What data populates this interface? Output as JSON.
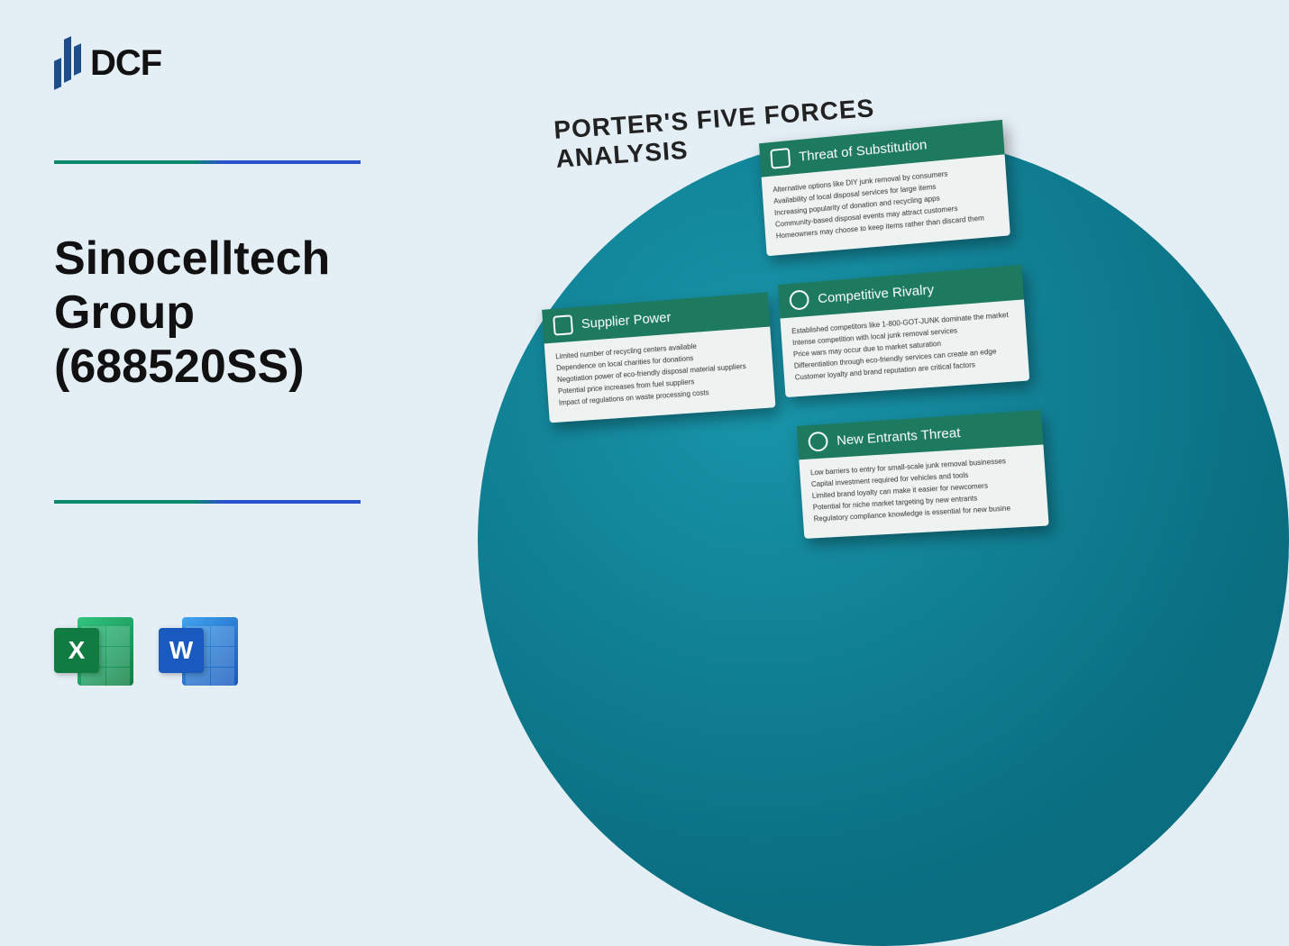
{
  "logo_text": "DCF",
  "company_title": "Sinocelltech\nGroup\n(688520SS)",
  "analysis_title": "PORTER'S FIVE FORCES ANALYSIS",
  "file_icons": {
    "excel": "X",
    "word": "W"
  },
  "colors": {
    "background": "#e4eef5",
    "card_header": "#1d7a5e",
    "circle_inner": "#1896ab",
    "circle_outer": "#0a6d80",
    "divider_left": "#0a8a6a",
    "divider_right": "#2952cc"
  },
  "cards": {
    "substitution": {
      "title": "Threat of Substitution",
      "lines": [
        "Alternative options like DIY junk removal by consumers",
        "Availability of local disposal services for large items",
        "Increasing popularity of donation and recycling apps",
        "Community-based disposal events may attract customers",
        "Homeowners may choose to keep items rather than discard them"
      ]
    },
    "supplier": {
      "title": "Supplier Power",
      "lines": [
        "Limited number of recycling centers available",
        "Dependence on local charities for donations",
        "Negotiation power of eco-friendly disposal material suppliers",
        "Potential price increases from fuel suppliers",
        "Impact of regulations on waste processing costs"
      ]
    },
    "rivalry": {
      "title": "Competitive Rivalry",
      "lines": [
        "Established competitors like 1-800-GOT-JUNK dominate the market",
        "Intense competition with local junk removal services",
        "Price wars may occur due to market saturation",
        "Differentiation through eco-friendly services can create an edge",
        "Customer loyalty and brand reputation are critical factors"
      ]
    },
    "entrants": {
      "title": "New Entrants Threat",
      "lines": [
        "Low barriers to entry for small-scale junk removal businesses",
        "Capital investment required for vehicles and tools",
        "Limited brand loyalty can make it easier for newcomers",
        "Potential for niche market targeting by new entrants",
        "Regulatory compliance knowledge is essential for new busine"
      ]
    }
  }
}
